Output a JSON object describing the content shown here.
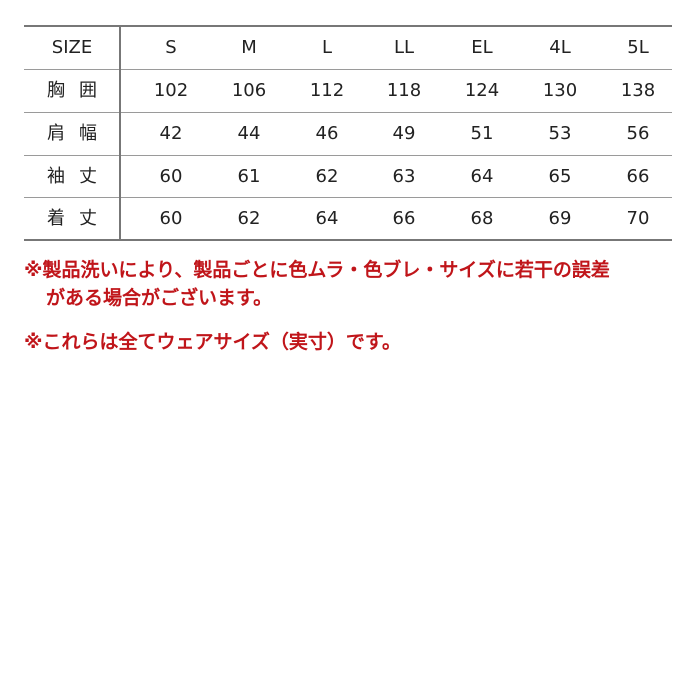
{
  "table": {
    "header_label": "SIZE",
    "sizes": [
      "S",
      "M",
      "L",
      "LL",
      "EL",
      "4L",
      "5L"
    ],
    "rows": [
      {
        "label": "胸囲",
        "values": [
          "102",
          "106",
          "112",
          "118",
          "124",
          "130",
          "138"
        ]
      },
      {
        "label": "肩幅",
        "values": [
          "42",
          "44",
          "46",
          "49",
          "51",
          "53",
          "56"
        ]
      },
      {
        "label": "袖丈",
        "values": [
          "60",
          "61",
          "62",
          "63",
          "64",
          "65",
          "66"
        ]
      },
      {
        "label": "着丈",
        "values": [
          "60",
          "62",
          "64",
          "66",
          "68",
          "69",
          "70"
        ]
      }
    ]
  },
  "notes": {
    "note1_line1": "※製品洗いにより、製品ごとに色ムラ・色ブレ・サイズに若干の誤差",
    "note1_line2": "がある場合がございます。",
    "note2": "※これらは全てウェアサイズ（実寸）です。"
  },
  "colors": {
    "note_text": "#c0151a",
    "text": "#222222"
  }
}
